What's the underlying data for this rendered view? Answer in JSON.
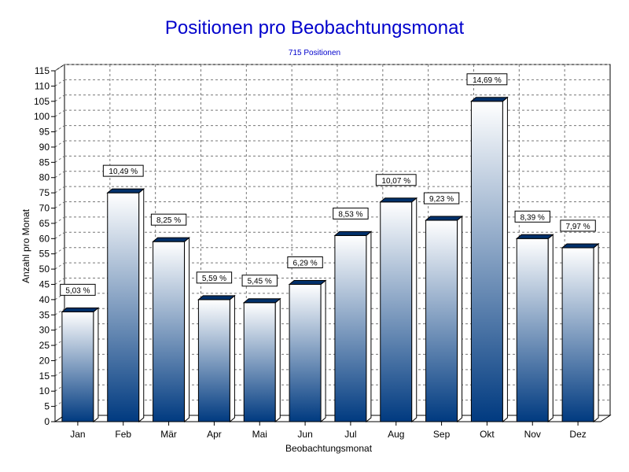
{
  "chart_data": {
    "type": "bar",
    "title": "Positionen pro Beobachtungsmonat",
    "subtitle": "715 Positionen",
    "xlabel": "Beobachtungsmonat",
    "ylabel": "Anzahl pro Monat",
    "ylim": [
      0,
      115
    ],
    "ytick_step": 5,
    "grid": true,
    "categories": [
      "Jan",
      "Feb",
      "Mär",
      "Apr",
      "Mai",
      "Jun",
      "Jul",
      "Aug",
      "Sep",
      "Okt",
      "Nov",
      "Dez"
    ],
    "values": [
      36,
      75,
      59,
      40,
      39,
      45,
      61,
      72,
      66,
      105,
      60,
      57
    ],
    "data_labels": [
      "5,03 %",
      "10,49 %",
      "8,25 %",
      "5,59 %",
      "5,45 %",
      "6,29 %",
      "8,53 %",
      "10,07 %",
      "9,23 %",
      "14,69 %",
      "8,39 %",
      "7,97 %"
    ],
    "colors": {
      "bar_top": "#ffffff",
      "bar_bottom": "#003a80",
      "bar_side": "#00306a",
      "title": "#0000cc"
    }
  }
}
